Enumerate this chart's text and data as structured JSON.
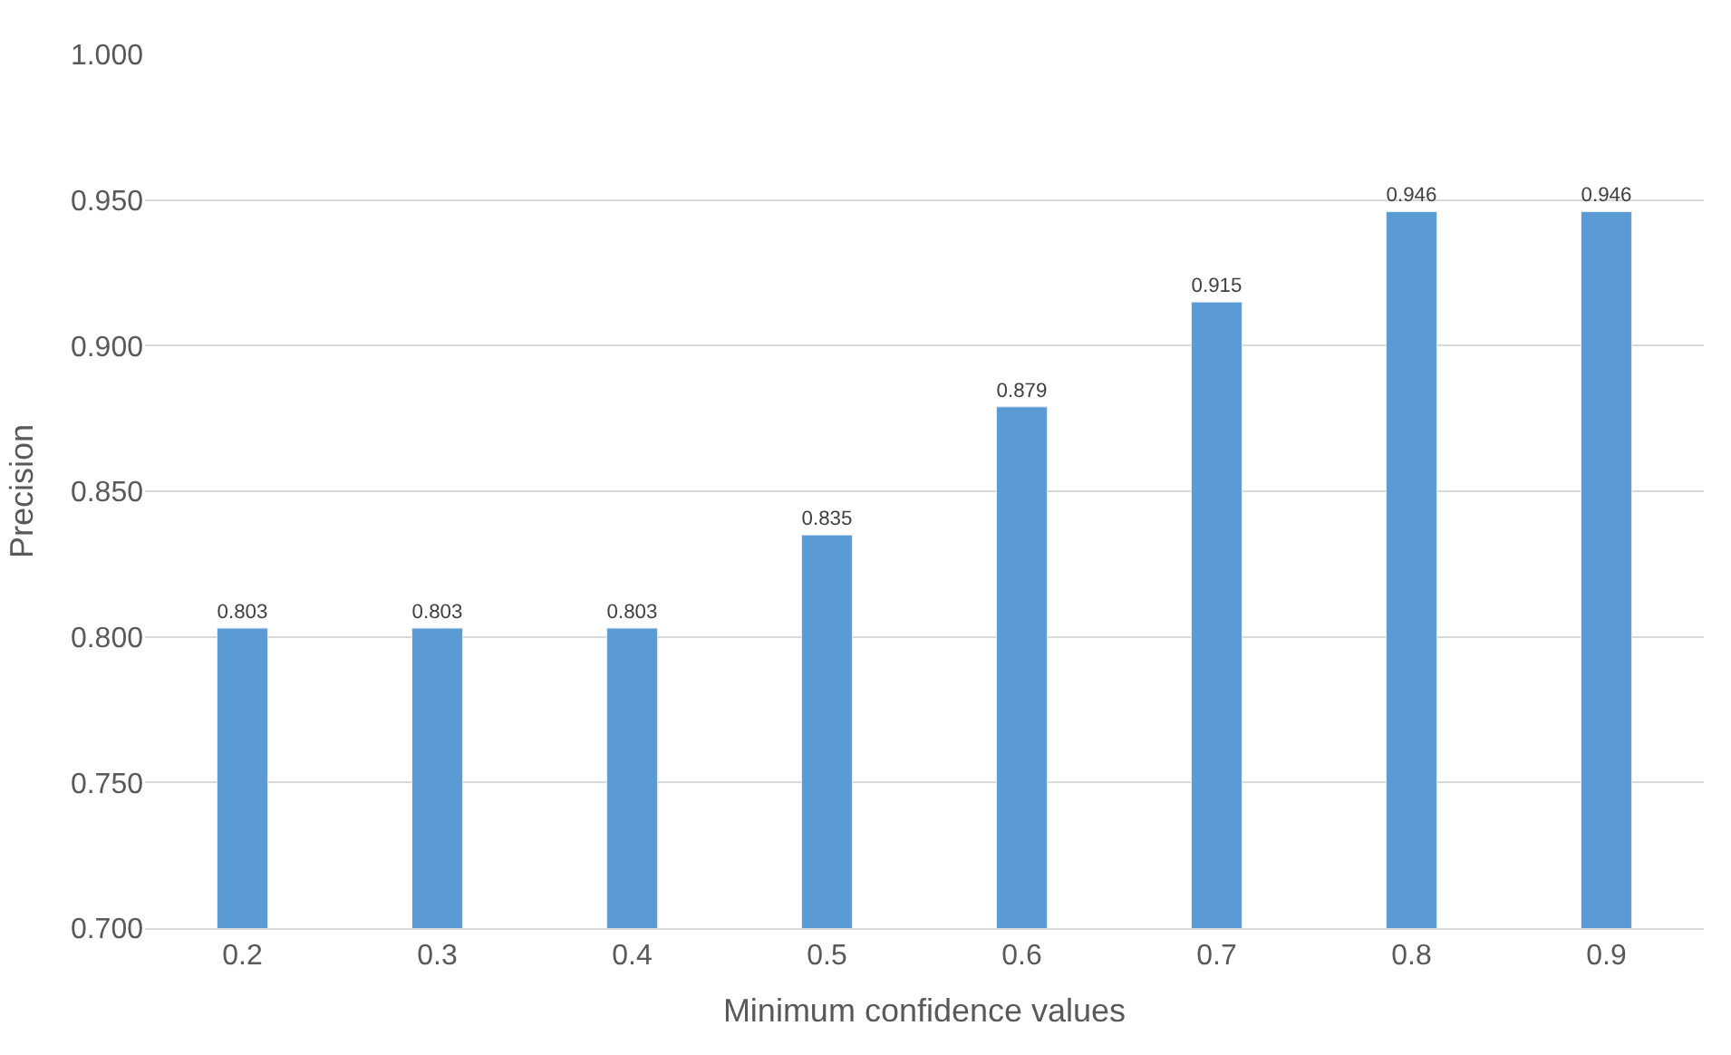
{
  "chart_data": {
    "type": "bar",
    "categories": [
      "0.2",
      "0.3",
      "0.4",
      "0.5",
      "0.6",
      "0.7",
      "0.8",
      "0.9"
    ],
    "values": [
      0.803,
      0.803,
      0.803,
      0.835,
      0.879,
      0.915,
      0.946,
      0.946
    ],
    "color": "#5b9bd5",
    "xlabel": "Minimum confidence values",
    "ylabel": "Precision",
    "ylim": [
      0.7,
      1.0
    ],
    "yticks": [
      {
        "value": 0.7,
        "label": "0.700"
      },
      {
        "value": 0.75,
        "label": "0.750"
      },
      {
        "value": 0.8,
        "label": "0.800"
      },
      {
        "value": 0.85,
        "label": "0.850"
      },
      {
        "value": 0.9,
        "label": "0.900"
      },
      {
        "value": 0.95,
        "label": "0.950"
      },
      {
        "value": 1.0,
        "label": "1.000"
      }
    ],
    "grid": "y",
    "data_labels": true
  }
}
